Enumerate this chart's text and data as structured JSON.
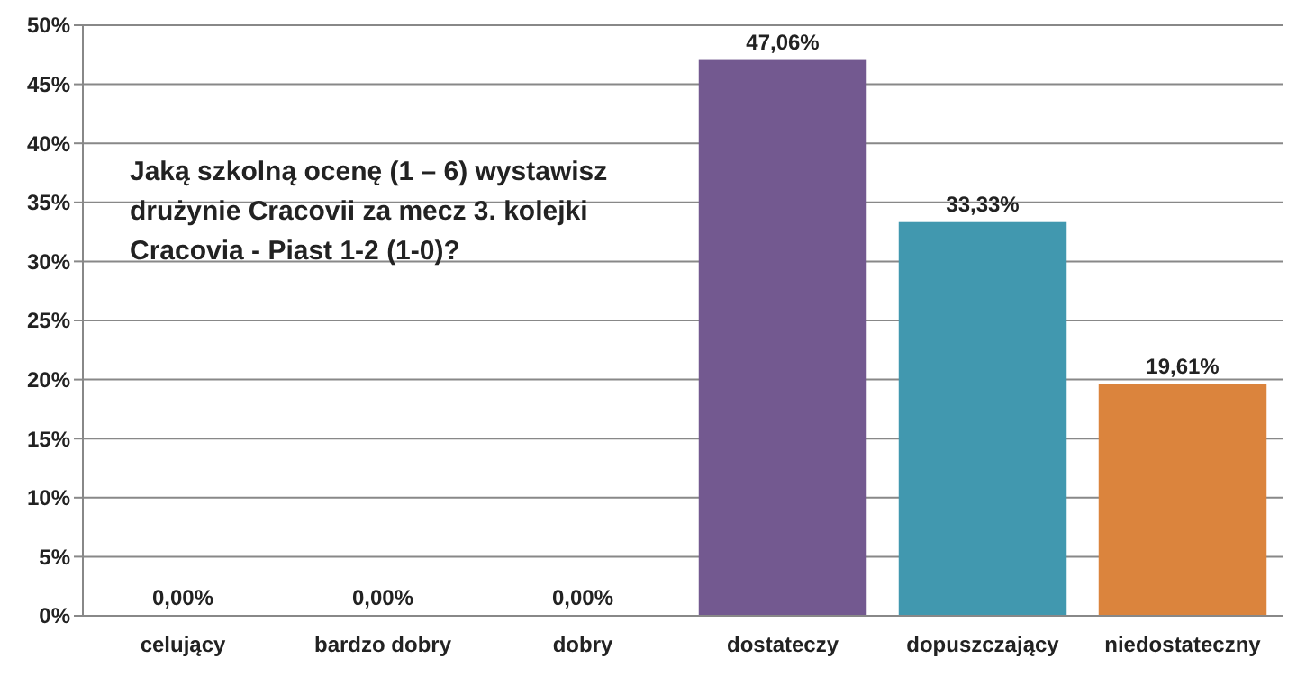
{
  "chart_data": {
    "type": "bar",
    "title": "Jaką szkolną ocenę (1 – 6) wystawisz drużynie Cracovii za mecz 3. kolejki Cracovia - Piast 1-2 (1-0)?",
    "categories": [
      "celujący",
      "bardzo dobry",
      "dobry",
      "dostateczy",
      "dopuszczający",
      "niedostateczny"
    ],
    "values": [
      0,
      0,
      0,
      47.06,
      33.33,
      19.61
    ],
    "colors": [
      "#735990",
      "#735990",
      "#735990",
      "#735990",
      "#4198af",
      "#db843d"
    ],
    "value_labels": [
      "0,00%",
      "0,00%",
      "0,00%",
      "47,06%",
      "33,33%",
      "19,61%"
    ],
    "ylim": [
      0,
      50
    ],
    "yticks": [
      {
        "value": 0,
        "label": "0%"
      },
      {
        "value": 5,
        "label": "5%"
      },
      {
        "value": 10,
        "label": "10%"
      },
      {
        "value": 15,
        "label": "15%"
      },
      {
        "value": 20,
        "label": "20%"
      },
      {
        "value": 25,
        "label": "25%"
      },
      {
        "value": 30,
        "label": "30%"
      },
      {
        "value": 35,
        "label": "35%"
      },
      {
        "value": 40,
        "label": "40%"
      },
      {
        "value": 45,
        "label": "45%"
      },
      {
        "value": 50,
        "label": "50%"
      }
    ],
    "grid": "y"
  }
}
